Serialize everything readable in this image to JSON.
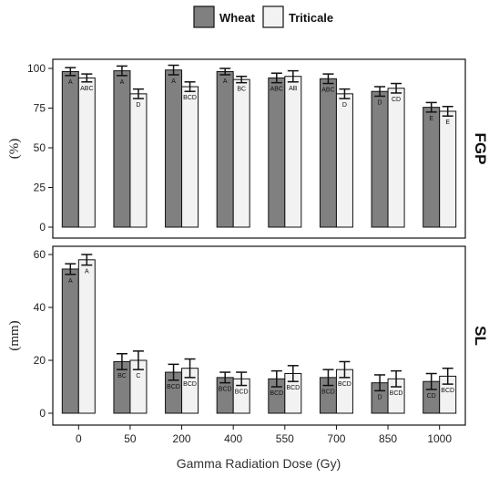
{
  "chart_data": {
    "type": "bar",
    "xlabel": "Gamma Radiation Dose (Gy)",
    "categories": [
      "0",
      "50",
      "200",
      "400",
      "550",
      "700",
      "850",
      "1000"
    ],
    "legend": {
      "position": "top",
      "entries": [
        {
          "name": "Wheat",
          "color": "#808080"
        },
        {
          "name": "Triticale",
          "color": "#f2f2f2"
        }
      ]
    },
    "panels": [
      {
        "facet_label": "FGP",
        "ylabel": "(%)",
        "ylim": [
          0,
          100
        ],
        "yticks": [
          0,
          25,
          50,
          75,
          100
        ],
        "series": [
          {
            "name": "Wheat",
            "values": [
              98,
              98.5,
              99,
              98,
              94,
              93.5,
              85.5,
              75.5
            ],
            "errors": [
              2.5,
              3,
              3,
              2,
              3,
              3,
              3,
              3
            ],
            "letters": [
              "A",
              "A",
              "A",
              "A",
              "ABC",
              "ABC",
              "D",
              "E"
            ]
          },
          {
            "name": "Triticale",
            "values": [
              94,
              84,
              88.5,
              93,
              95,
              84,
              87.5,
              73
            ],
            "errors": [
              2.5,
              3,
              3,
              2,
              3.5,
              3,
              3,
              3
            ],
            "letters": [
              "ABC",
              "D",
              "BCD",
              "BC",
              "AB",
              "D",
              "CD",
              "E"
            ]
          }
        ]
      },
      {
        "facet_label": "SL",
        "ylabel": "(mm)",
        "ylim": [
          0,
          60
        ],
        "yticks": [
          0,
          20,
          40,
          60
        ],
        "series": [
          {
            "name": "Wheat",
            "values": [
              54.5,
              19.5,
              15.5,
              13.5,
              13,
              13.5,
              11.5,
              12
            ],
            "errors": [
              2,
              3,
              3,
              2,
              3,
              3,
              3,
              3
            ],
            "letters": [
              "A",
              "BC",
              "BCD",
              "BCD",
              "BCD",
              "BCD",
              "D",
              "CD"
            ]
          },
          {
            "name": "Triticale",
            "values": [
              58,
              20,
              17,
              13,
              15,
              16.5,
              13,
              14
            ],
            "errors": [
              2,
              3.5,
              3.5,
              2.5,
              3,
              3,
              3,
              3
            ],
            "letters": [
              "A",
              "C",
              "BCD",
              "BCD",
              "BCD",
              "BCD",
              "BCD",
              "BCD"
            ]
          }
        ]
      }
    ]
  }
}
